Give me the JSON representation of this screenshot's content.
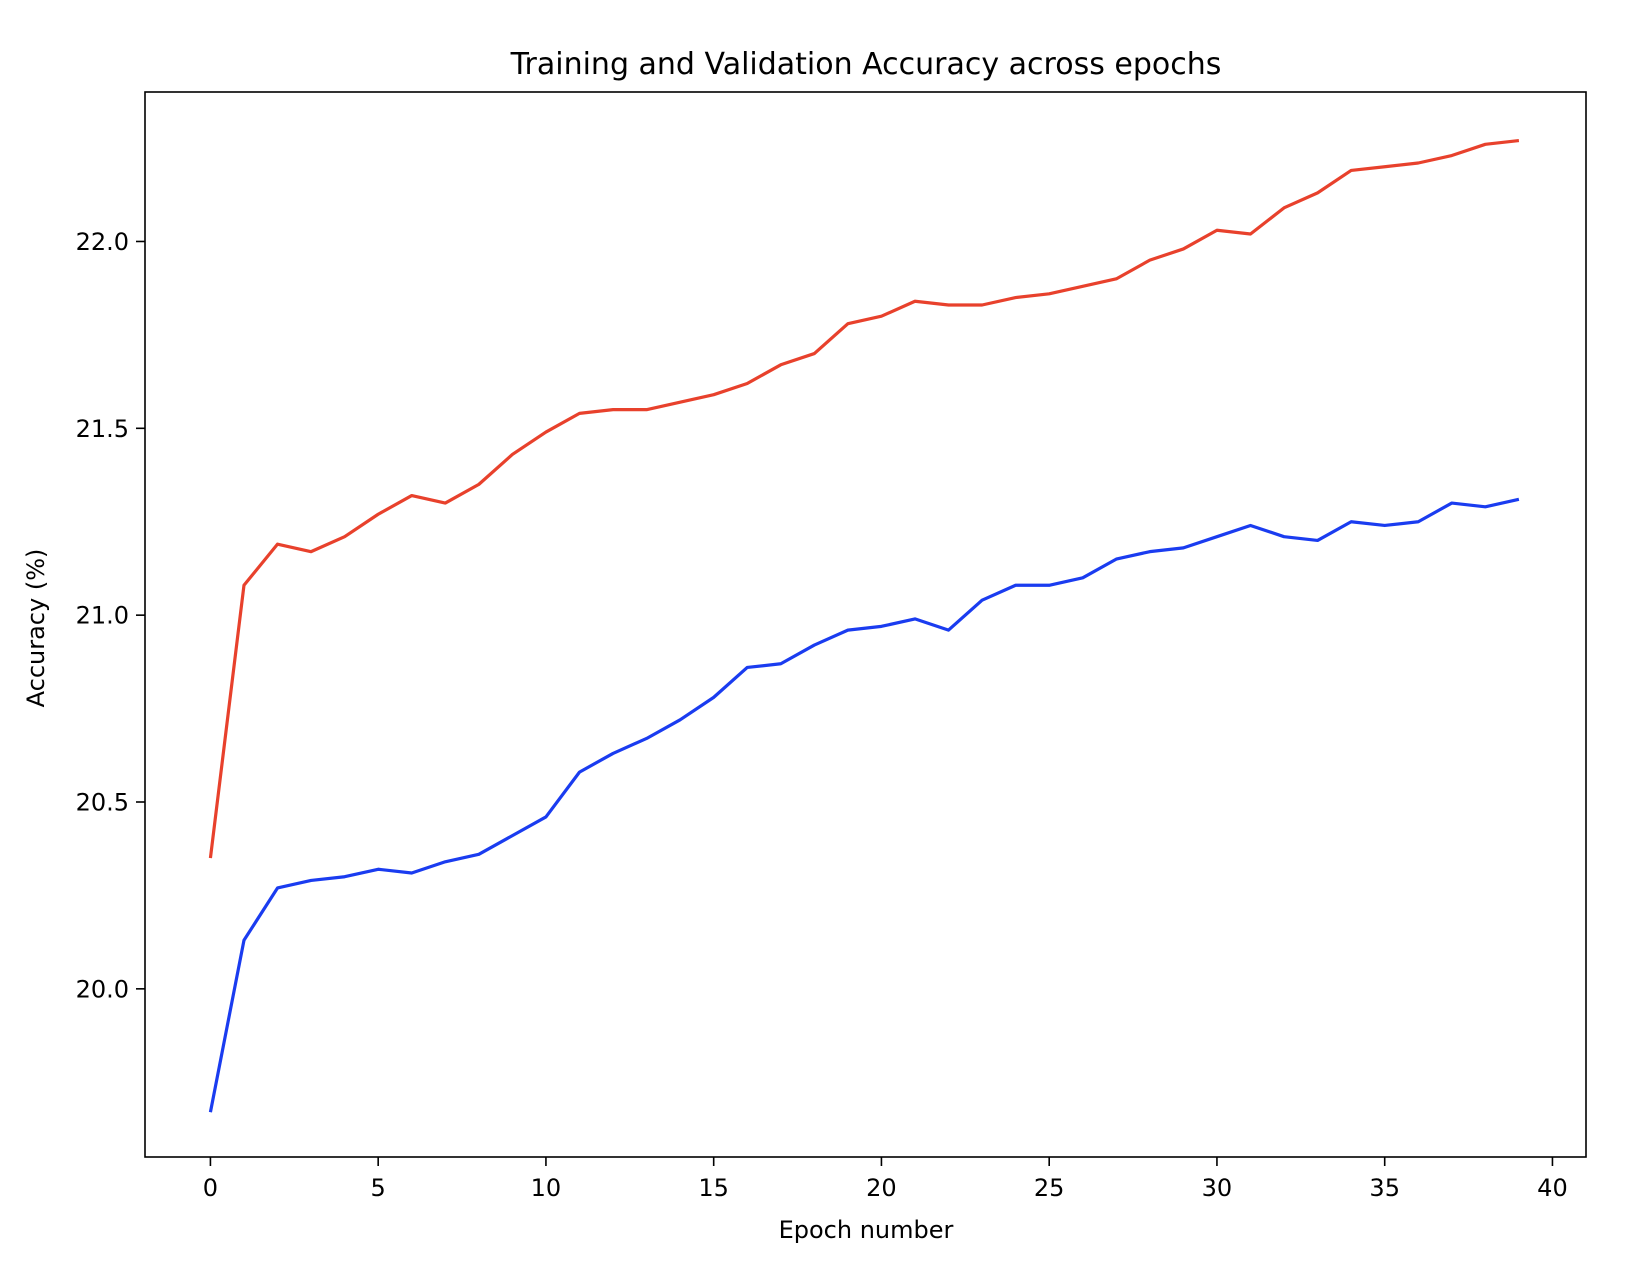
{
  "chart_data": {
    "type": "line",
    "title": "Training and Validation Accuracy across epochs",
    "xlabel": "Epoch number",
    "ylabel": "Accuracy (%)",
    "xlim": [
      -1.95,
      41.0
    ],
    "ylim": [
      19.55,
      22.4
    ],
    "xticks": [
      0,
      5,
      10,
      15,
      20,
      25,
      30,
      35,
      40
    ],
    "yticks": [
      20.0,
      20.5,
      21.0,
      21.5,
      22.0
    ],
    "xtick_labels": [
      "0",
      "5",
      "10",
      "15",
      "20",
      "25",
      "30",
      "35",
      "40"
    ],
    "ytick_labels": [
      "20.0",
      "20.5",
      "21.0",
      "21.5",
      "22.0"
    ],
    "grid": false,
    "legend": "none",
    "x": [
      0,
      1,
      2,
      3,
      4,
      5,
      6,
      7,
      8,
      9,
      10,
      11,
      12,
      13,
      14,
      15,
      16,
      17,
      18,
      19,
      20,
      21,
      22,
      23,
      24,
      25,
      26,
      27,
      28,
      29,
      30,
      31,
      32,
      33,
      34,
      35,
      36,
      37,
      38,
      39
    ],
    "series": [
      {
        "color": "#e8412c",
        "values": [
          20.35,
          21.08,
          21.19,
          21.17,
          21.21,
          21.27,
          21.32,
          21.3,
          21.35,
          21.43,
          21.49,
          21.54,
          21.55,
          21.55,
          21.57,
          21.59,
          21.62,
          21.67,
          21.7,
          21.78,
          21.8,
          21.84,
          21.83,
          21.83,
          21.85,
          21.86,
          21.88,
          21.9,
          21.95,
          21.98,
          22.03,
          22.02,
          22.09,
          22.13,
          22.19,
          22.2,
          22.21,
          22.23,
          22.26,
          22.27
        ]
      },
      {
        "color": "#1a3cf0",
        "values": [
          19.67,
          20.13,
          20.27,
          20.29,
          20.3,
          20.32,
          20.31,
          20.34,
          20.36,
          20.41,
          20.46,
          20.58,
          20.63,
          20.67,
          20.72,
          20.78,
          20.86,
          20.87,
          20.92,
          20.96,
          20.97,
          20.99,
          20.96,
          21.04,
          21.08,
          21.08,
          21.1,
          21.15,
          21.17,
          21.18,
          21.21,
          21.24,
          21.21,
          21.2,
          21.25,
          21.24,
          21.25,
          21.3,
          21.29,
          21.31
        ]
      }
    ]
  }
}
